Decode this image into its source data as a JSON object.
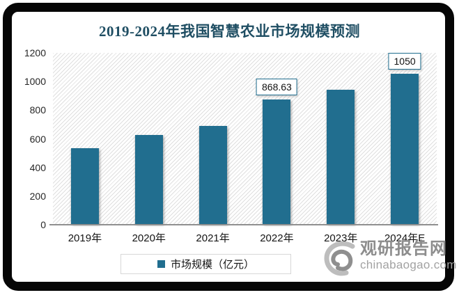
{
  "chart_data": {
    "type": "bar",
    "title": "2019-2024年我国智慧农业市场规模预测",
    "categories": [
      "2019年",
      "2020年",
      "2021年",
      "2022年",
      "2023年",
      "2024年E"
    ],
    "values": [
      530,
      620,
      685,
      868.63,
      940,
      1050
    ],
    "bar_labels": [
      "",
      "",
      "",
      "868.63",
      "",
      "1050"
    ],
    "legend": [
      "市场规模（亿元）"
    ],
    "legend_position": "bottom",
    "xlabel": "",
    "ylabel": "",
    "ylim": [
      0,
      1200
    ],
    "yticks": [
      0,
      200,
      400,
      600,
      800,
      1000,
      1200
    ],
    "grid": false,
    "plot_background": "diagonal-hatch"
  },
  "colors": {
    "bar": "#216e8f",
    "title": "#1f4e63",
    "label_box_border": "#216e8f",
    "axis_line": "#8f8f8f",
    "frame_border": "#060606",
    "watermark_brand": "#8d8d8d",
    "watermark_domain": "#a2a2a2"
  },
  "watermark": {
    "brand": "观研报告网",
    "domain": "chinabaogao.com",
    "logo": "swirl-logo"
  }
}
